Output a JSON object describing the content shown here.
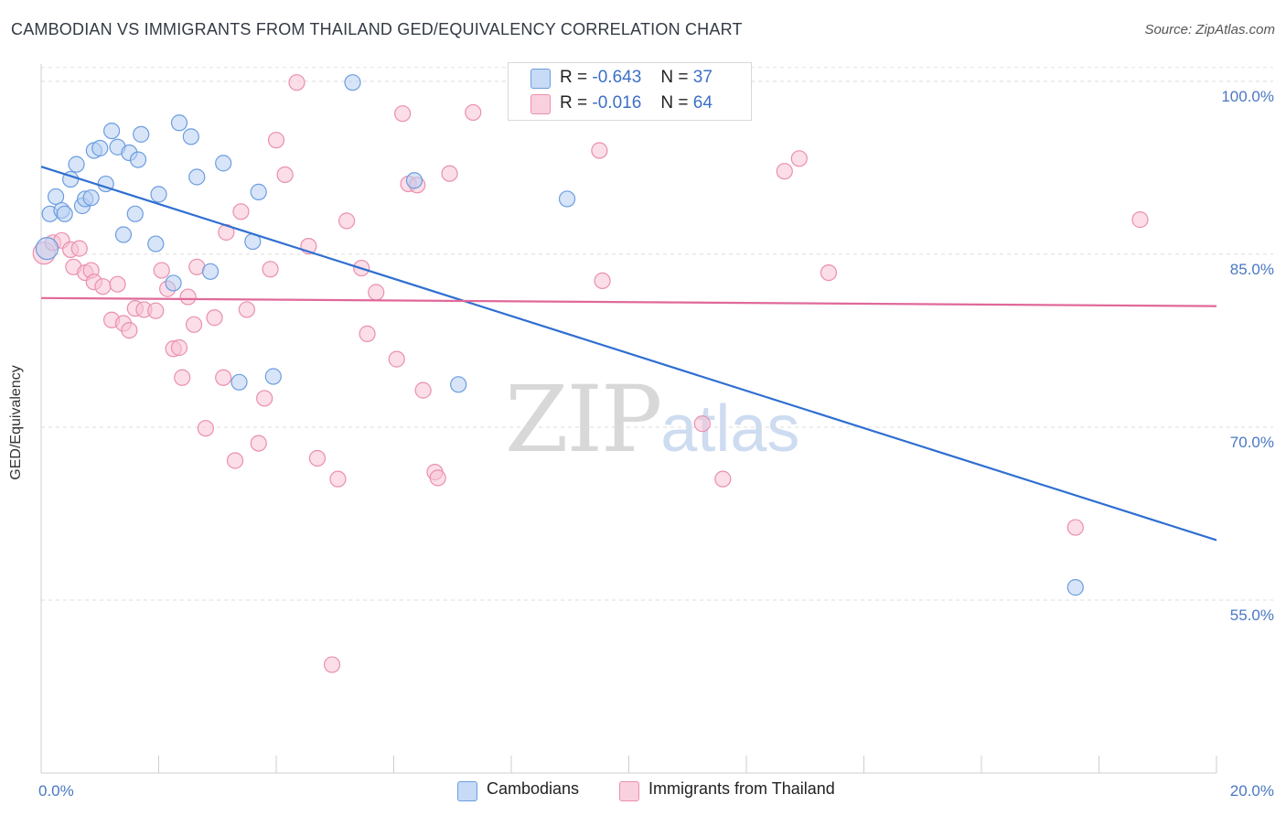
{
  "title": "CAMBODIAN VS IMMIGRANTS FROM THAILAND GED/EQUIVALENCY CORRELATION CHART",
  "source": "Source: ZipAtlas.com",
  "watermark": {
    "zip": "ZIP",
    "atlas": "atlas"
  },
  "colors": {
    "blue": "#6b9de0",
    "blue_fill": "#b8d0f3",
    "blue_line": "#2f6fd1",
    "pink": "#ea8fb0",
    "pink_fill": "#f7c2d4",
    "pink_line": "#e0699a",
    "tick_text": "#4a78c2"
  },
  "legend_top": [
    {
      "r_label": "R =",
      "r_value": "-0.643",
      "n_label": "N =",
      "n_value": "37"
    },
    {
      "r_label": "R =",
      "r_value": "-0.016",
      "n_label": "N =",
      "n_value": "64"
    }
  ],
  "legend_bottom": [
    "Cambodians",
    "Immigrants from Thailand"
  ],
  "chart_data": {
    "type": "scatter",
    "ylabel": "GED/Equivalency",
    "xlim": [
      0,
      20
    ],
    "ylim": [
      40,
      101.5
    ],
    "x_tick_labels": [
      "0.0%",
      "20.0%"
    ],
    "y_ticks": [
      {
        "value": 100,
        "label": "100.0%"
      },
      {
        "value": 85,
        "label": "85.0%"
      },
      {
        "value": 70,
        "label": "70.0%"
      },
      {
        "value": 55,
        "label": "55.0%"
      }
    ],
    "grid": true,
    "series": [
      {
        "name": "Cambodians",
        "points": [
          [
            0.1,
            85.5
          ],
          [
            0.15,
            88.5
          ],
          [
            0.25,
            90.0
          ],
          [
            0.35,
            88.8
          ],
          [
            0.4,
            88.5
          ],
          [
            0.5,
            91.5
          ],
          [
            0.6,
            92.8
          ],
          [
            0.7,
            89.2
          ],
          [
            0.75,
            89.8
          ],
          [
            0.85,
            89.9
          ],
          [
            0.9,
            94.0
          ],
          [
            1.0,
            94.2
          ],
          [
            1.1,
            91.1
          ],
          [
            1.2,
            95.7
          ],
          [
            1.3,
            94.3
          ],
          [
            1.4,
            86.7
          ],
          [
            1.5,
            93.8
          ],
          [
            1.6,
            88.5
          ],
          [
            1.65,
            93.2
          ],
          [
            1.7,
            95.4
          ],
          [
            1.95,
            85.9
          ],
          [
            2.0,
            90.2
          ],
          [
            2.25,
            82.5
          ],
          [
            2.35,
            96.4
          ],
          [
            2.55,
            95.2
          ],
          [
            2.65,
            91.7
          ],
          [
            2.88,
            83.5
          ],
          [
            3.1,
            92.9
          ],
          [
            3.37,
            73.9
          ],
          [
            3.6,
            86.1
          ],
          [
            3.7,
            90.4
          ],
          [
            3.95,
            74.4
          ],
          [
            5.3,
            99.9
          ],
          [
            6.35,
            91.4
          ],
          [
            7.1,
            73.7
          ],
          [
            8.95,
            89.8
          ],
          [
            17.6,
            56.1
          ]
        ],
        "trend": {
          "x": [
            0,
            20
          ],
          "y": [
            92.6,
            60.2
          ]
        }
      },
      {
        "name": "Immigrants from Thailand",
        "points": [
          [
            0.05,
            85.1
          ],
          [
            0.2,
            86.0
          ],
          [
            0.35,
            86.2
          ],
          [
            0.5,
            85.4
          ],
          [
            0.55,
            83.9
          ],
          [
            0.65,
            85.5
          ],
          [
            0.75,
            83.4
          ],
          [
            0.85,
            83.6
          ],
          [
            0.9,
            82.6
          ],
          [
            1.05,
            82.2
          ],
          [
            1.2,
            79.3
          ],
          [
            1.3,
            82.4
          ],
          [
            1.4,
            79.0
          ],
          [
            1.5,
            78.4
          ],
          [
            1.6,
            80.3
          ],
          [
            1.75,
            80.2
          ],
          [
            1.95,
            80.1
          ],
          [
            2.05,
            83.6
          ],
          [
            2.15,
            82.0
          ],
          [
            2.25,
            76.8
          ],
          [
            2.35,
            76.9
          ],
          [
            2.4,
            74.3
          ],
          [
            2.5,
            81.3
          ],
          [
            2.6,
            78.9
          ],
          [
            2.65,
            83.9
          ],
          [
            2.8,
            69.9
          ],
          [
            2.95,
            79.5
          ],
          [
            3.1,
            74.3
          ],
          [
            3.15,
            86.9
          ],
          [
            3.3,
            67.1
          ],
          [
            3.4,
            88.7
          ],
          [
            3.5,
            80.2
          ],
          [
            3.7,
            68.6
          ],
          [
            3.8,
            72.5
          ],
          [
            3.9,
            83.7
          ],
          [
            4.0,
            94.9
          ],
          [
            4.15,
            91.9
          ],
          [
            4.35,
            99.9
          ],
          [
            4.55,
            85.7
          ],
          [
            4.7,
            67.3
          ],
          [
            4.95,
            49.4
          ],
          [
            5.05,
            65.5
          ],
          [
            5.2,
            87.9
          ],
          [
            5.45,
            83.8
          ],
          [
            5.55,
            78.1
          ],
          [
            5.7,
            81.7
          ],
          [
            6.05,
            75.9
          ],
          [
            6.15,
            97.2
          ],
          [
            6.25,
            91.1
          ],
          [
            6.4,
            91.0
          ],
          [
            6.5,
            73.2
          ],
          [
            6.7,
            66.1
          ],
          [
            6.75,
            65.6
          ],
          [
            6.95,
            92.0
          ],
          [
            7.35,
            97.3
          ],
          [
            9.5,
            94.0
          ],
          [
            9.55,
            82.7
          ],
          [
            11.25,
            70.3
          ],
          [
            11.6,
            65.5
          ],
          [
            12.65,
            92.2
          ],
          [
            12.9,
            93.3
          ],
          [
            13.4,
            83.4
          ],
          [
            18.7,
            88.0
          ],
          [
            17.6,
            61.3
          ]
        ],
        "trend": {
          "x": [
            0,
            20
          ],
          "y": [
            81.2,
            80.5
          ]
        }
      }
    ]
  }
}
